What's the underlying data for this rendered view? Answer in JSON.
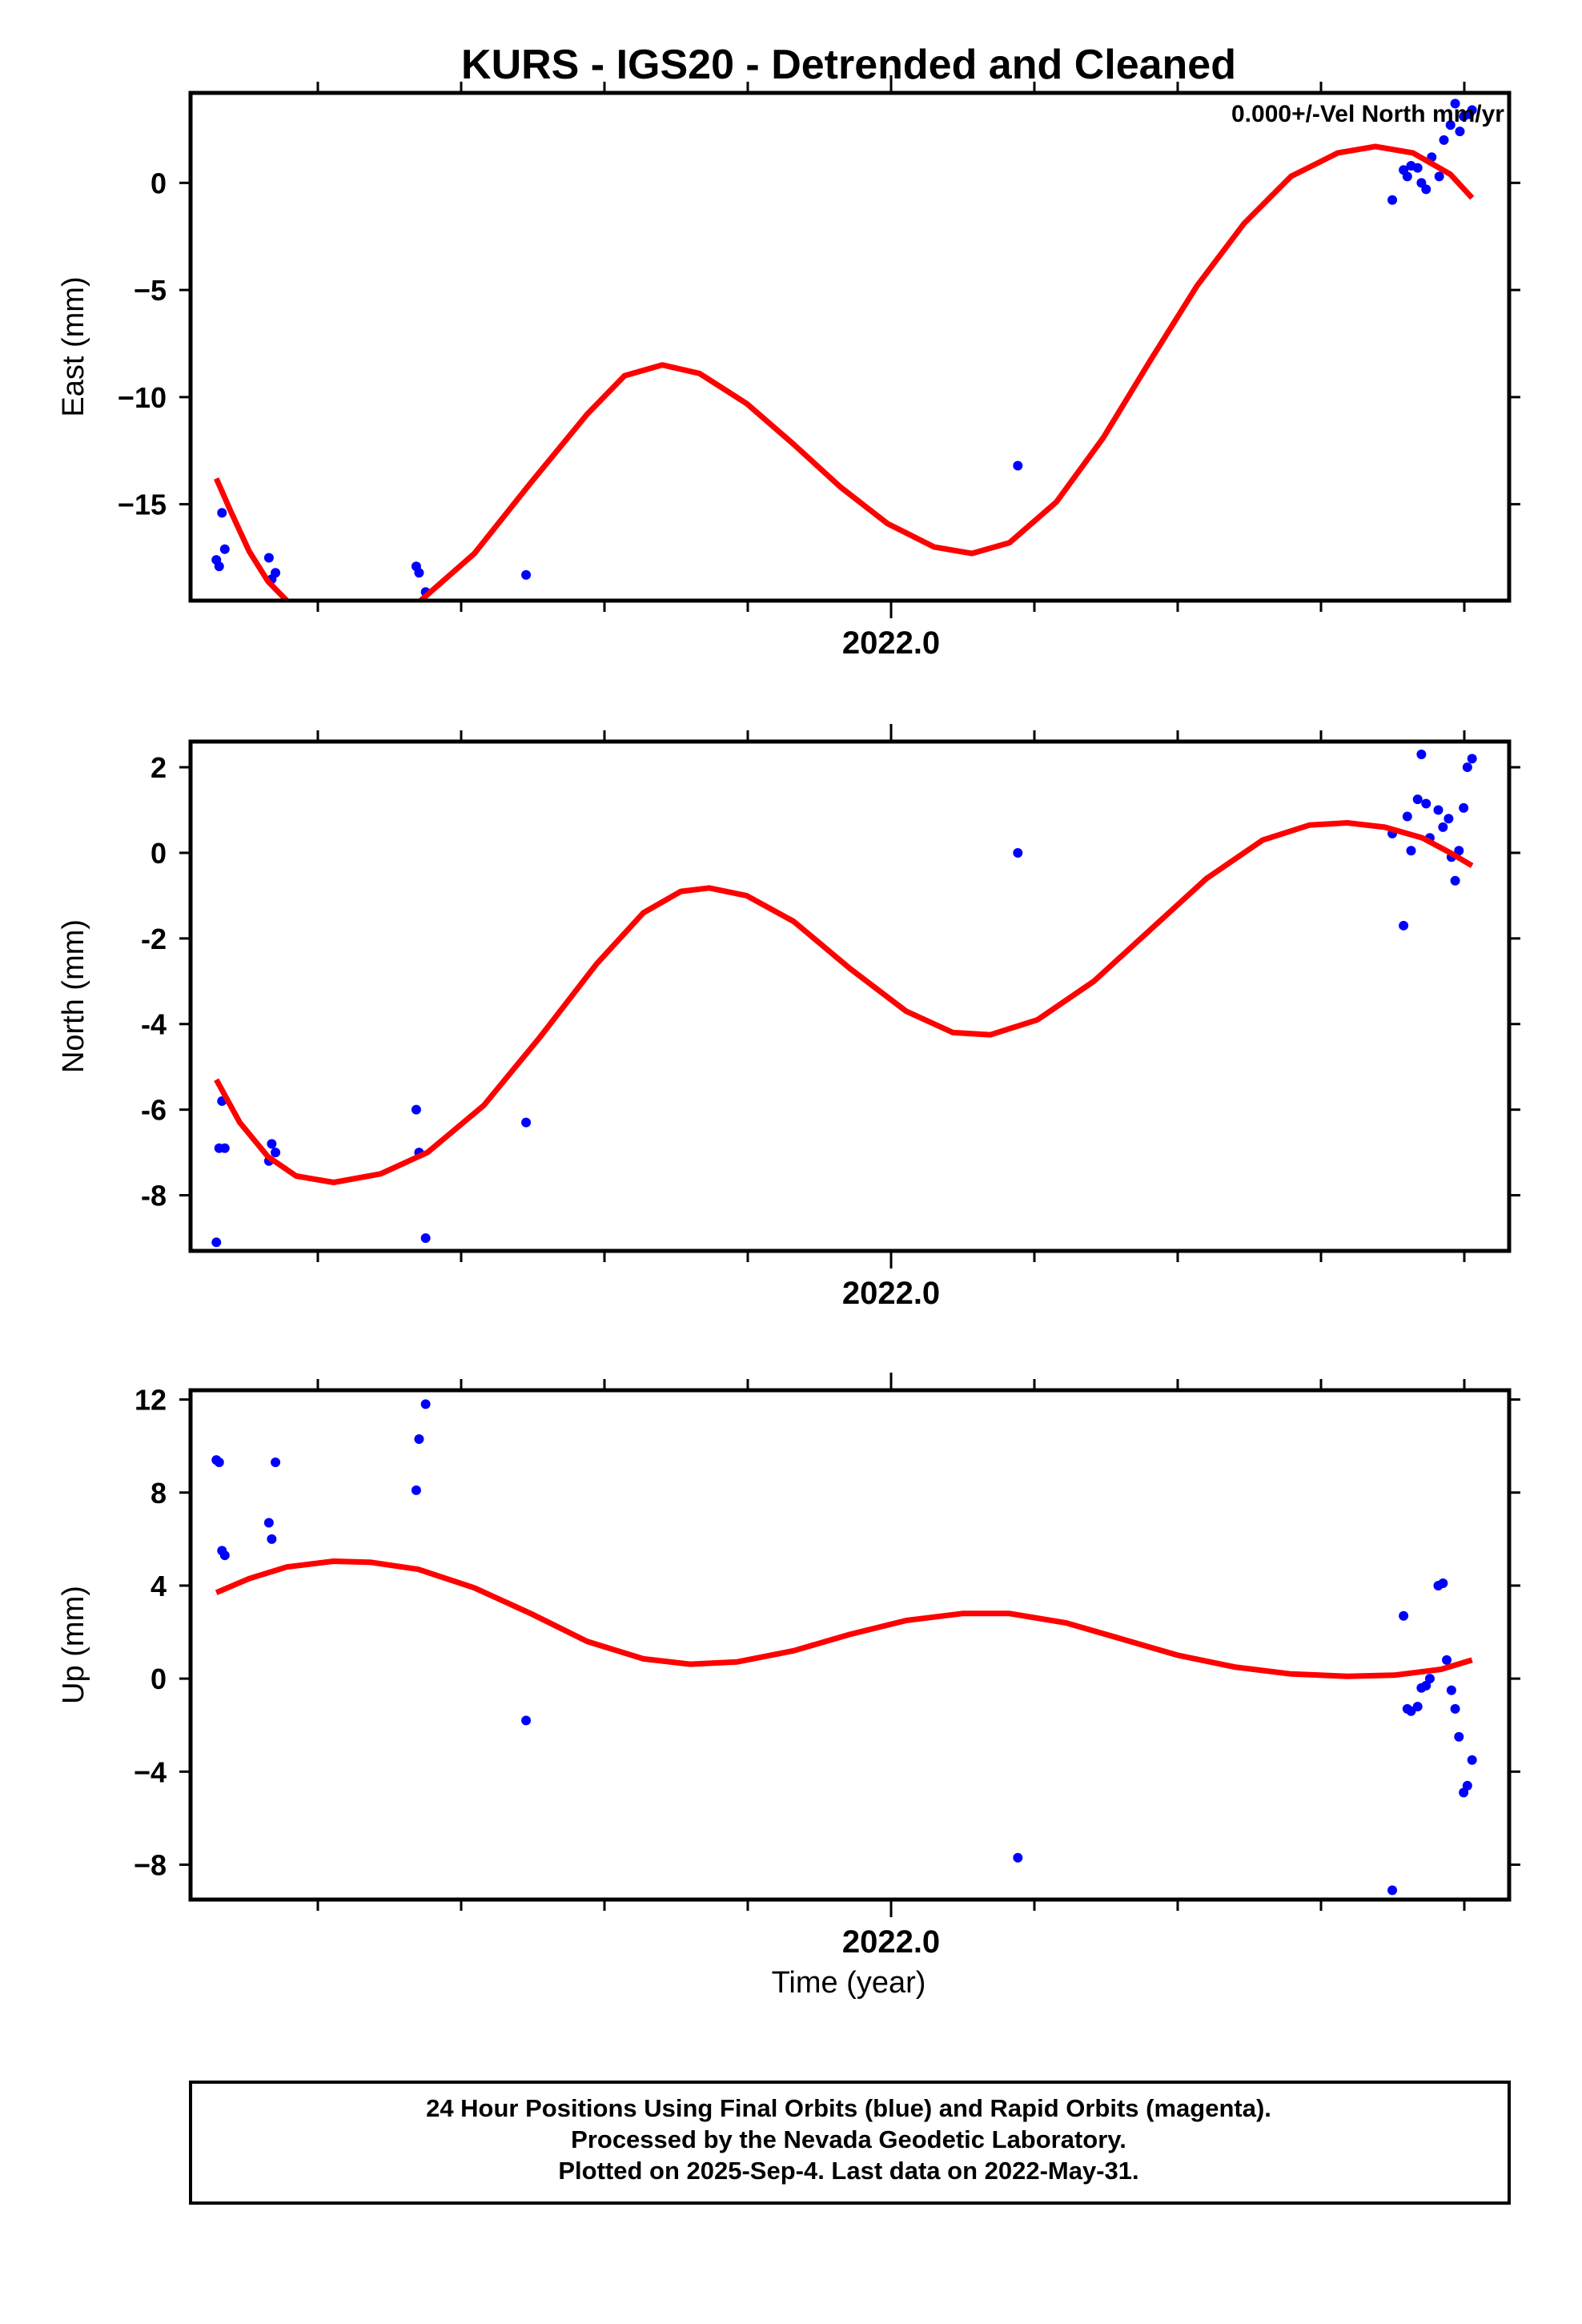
{
  "title": "KURS - IGS20 - Detrended and Cleaned",
  "xlabel": "Time (year)",
  "footer": {
    "line1": "24 Hour Positions Using Final Orbits (blue) and Rapid Orbits (magenta).",
    "line2": "Processed by the Nevada Geodetic Laboratory.",
    "line3": "Plotted on 2025-Sep-4. Last data on 2022-May-31."
  },
  "colors": {
    "points": "#0000ff",
    "fit": "#ff0000",
    "axes": "#000000"
  },
  "chart_data": [
    {
      "type": "scatter",
      "ylabel": "East (mm)",
      "annotation": "0.000+/-Vel North mm/yr",
      "xlim": [
        2021.0575,
        2022.4625
      ],
      "ylim": [
        -19.5,
        4.2
      ],
      "x_tick_label": "2022.0",
      "yticks": [
        0,
        -5,
        -10,
        -15
      ],
      "ytick_labels": [
        "0",
        "−5",
        "−10",
        "−15"
      ],
      "points": [
        {
          "x": 2021.085,
          "y": -17.6
        },
        {
          "x": 2021.088,
          "y": -17.9
        },
        {
          "x": 2021.091,
          "y": -15.4
        },
        {
          "x": 2021.094,
          "y": -17.1
        },
        {
          "x": 2021.141,
          "y": -17.5
        },
        {
          "x": 2021.144,
          "y": -18.5
        },
        {
          "x": 2021.148,
          "y": -18.2
        },
        {
          "x": 2021.298,
          "y": -17.9
        },
        {
          "x": 2021.301,
          "y": -18.2
        },
        {
          "x": 2021.308,
          "y": -19.1
        },
        {
          "x": 2021.415,
          "y": -18.3
        },
        {
          "x": 2021.939,
          "y": -13.2
        },
        {
          "x": 2022.338,
          "y": -0.8
        },
        {
          "x": 2022.35,
          "y": 0.6
        },
        {
          "x": 2022.354,
          "y": 0.3
        },
        {
          "x": 2022.358,
          "y": 0.8
        },
        {
          "x": 2022.365,
          "y": 0.7
        },
        {
          "x": 2022.369,
          "y": 0.0
        },
        {
          "x": 2022.374,
          "y": -0.3
        },
        {
          "x": 2022.38,
          "y": 1.2
        },
        {
          "x": 2022.388,
          "y": 0.3
        },
        {
          "x": 2022.393,
          "y": 2.0
        },
        {
          "x": 2022.4,
          "y": 2.7
        },
        {
          "x": 2022.405,
          "y": 3.7
        },
        {
          "x": 2022.41,
          "y": 2.4
        },
        {
          "x": 2022.414,
          "y": 3.1
        },
        {
          "x": 2022.42,
          "y": 3.2
        },
        {
          "x": 2022.423,
          "y": 3.4
        }
      ],
      "fit": [
        {
          "x": 2021.085,
          "y": -13.8
        },
        {
          "x": 2021.1,
          "y": -15.3
        },
        {
          "x": 2021.12,
          "y": -17.2
        },
        {
          "x": 2021.14,
          "y": -18.6
        },
        {
          "x": 2021.16,
          "y": -19.5
        },
        {
          "x": 2021.2,
          "y": -20.5
        },
        {
          "x": 2021.26,
          "y": -20.3
        },
        {
          "x": 2021.3,
          "y": -19.6
        },
        {
          "x": 2021.36,
          "y": -17.3
        },
        {
          "x": 2021.42,
          "y": -14.0
        },
        {
          "x": 2021.48,
          "y": -10.8
        },
        {
          "x": 2021.52,
          "y": -9.0
        },
        {
          "x": 2021.56,
          "y": -8.5
        },
        {
          "x": 2021.6,
          "y": -8.9
        },
        {
          "x": 2021.65,
          "y": -10.3
        },
        {
          "x": 2021.7,
          "y": -12.2
        },
        {
          "x": 2021.75,
          "y": -14.2
        },
        {
          "x": 2021.8,
          "y": -15.9
        },
        {
          "x": 2021.85,
          "y": -17.0
        },
        {
          "x": 2021.89,
          "y": -17.3
        },
        {
          "x": 2021.93,
          "y": -16.8
        },
        {
          "x": 2021.98,
          "y": -14.9
        },
        {
          "x": 2022.03,
          "y": -11.9
        },
        {
          "x": 2022.08,
          "y": -8.3
        },
        {
          "x": 2022.13,
          "y": -4.8
        },
        {
          "x": 2022.18,
          "y": -1.9
        },
        {
          "x": 2022.23,
          "y": 0.3
        },
        {
          "x": 2022.28,
          "y": 1.4
        },
        {
          "x": 2022.32,
          "y": 1.7
        },
        {
          "x": 2022.36,
          "y": 1.4
        },
        {
          "x": 2022.4,
          "y": 0.4
        },
        {
          "x": 2022.423,
          "y": -0.7
        }
      ]
    },
    {
      "type": "scatter",
      "ylabel": "North (mm)",
      "xlim": [
        2021.0575,
        2022.4625
      ],
      "ylim": [
        -9.3,
        2.6
      ],
      "x_tick_label": "2022.0",
      "yticks": [
        2,
        0,
        -2,
        -4,
        -6,
        -8
      ],
      "ytick_labels": [
        "2",
        "0",
        "-2",
        "-4",
        "-6",
        "-8"
      ],
      "points": [
        {
          "x": 2021.085,
          "y": -9.1
        },
        {
          "x": 2021.088,
          "y": -6.9
        },
        {
          "x": 2021.091,
          "y": -5.8
        },
        {
          "x": 2021.094,
          "y": -6.9
        },
        {
          "x": 2021.141,
          "y": -7.2
        },
        {
          "x": 2021.144,
          "y": -6.8
        },
        {
          "x": 2021.148,
          "y": -7.0
        },
        {
          "x": 2021.298,
          "y": -6.0
        },
        {
          "x": 2021.301,
          "y": -7.0
        },
        {
          "x": 2021.308,
          "y": -9.0
        },
        {
          "x": 2021.415,
          "y": -6.3
        },
        {
          "x": 2021.939,
          "y": 0.0
        },
        {
          "x": 2022.338,
          "y": 0.45
        },
        {
          "x": 2022.35,
          "y": -1.7
        },
        {
          "x": 2022.354,
          "y": 0.85
        },
        {
          "x": 2022.358,
          "y": 0.05
        },
        {
          "x": 2022.365,
          "y": 1.25
        },
        {
          "x": 2022.369,
          "y": 2.3
        },
        {
          "x": 2022.374,
          "y": 1.15
        },
        {
          "x": 2022.378,
          "y": 0.35
        },
        {
          "x": 2022.387,
          "y": 1.0
        },
        {
          "x": 2022.392,
          "y": 0.6
        },
        {
          "x": 2022.398,
          "y": 0.8
        },
        {
          "x": 2022.401,
          "y": -0.1
        },
        {
          "x": 2022.405,
          "y": -0.65
        },
        {
          "x": 2022.409,
          "y": 0.05
        },
        {
          "x": 2022.414,
          "y": 1.05
        },
        {
          "x": 2022.418,
          "y": 2.0
        },
        {
          "x": 2022.423,
          "y": 2.2
        }
      ],
      "fit": [
        {
          "x": 2021.085,
          "y": -5.3
        },
        {
          "x": 2021.11,
          "y": -6.3
        },
        {
          "x": 2021.14,
          "y": -7.1
        },
        {
          "x": 2021.17,
          "y": -7.55
        },
        {
          "x": 2021.21,
          "y": -7.7
        },
        {
          "x": 2021.26,
          "y": -7.5
        },
        {
          "x": 2021.31,
          "y": -7.0
        },
        {
          "x": 2021.37,
          "y": -5.9
        },
        {
          "x": 2021.43,
          "y": -4.3
        },
        {
          "x": 2021.49,
          "y": -2.6
        },
        {
          "x": 2021.54,
          "y": -1.4
        },
        {
          "x": 2021.58,
          "y": -0.9
        },
        {
          "x": 2021.61,
          "y": -0.82
        },
        {
          "x": 2021.65,
          "y": -1.0
        },
        {
          "x": 2021.7,
          "y": -1.6
        },
        {
          "x": 2021.76,
          "y": -2.7
        },
        {
          "x": 2021.82,
          "y": -3.7
        },
        {
          "x": 2021.87,
          "y": -4.2
        },
        {
          "x": 2021.91,
          "y": -4.25
        },
        {
          "x": 2021.96,
          "y": -3.9
        },
        {
          "x": 2022.02,
          "y": -3.0
        },
        {
          "x": 2022.08,
          "y": -1.8
        },
        {
          "x": 2022.14,
          "y": -0.6
        },
        {
          "x": 2022.2,
          "y": 0.3
        },
        {
          "x": 2022.25,
          "y": 0.65
        },
        {
          "x": 2022.29,
          "y": 0.7
        },
        {
          "x": 2022.33,
          "y": 0.6
        },
        {
          "x": 2022.37,
          "y": 0.35
        },
        {
          "x": 2022.4,
          "y": 0.0
        },
        {
          "x": 2022.423,
          "y": -0.3
        }
      ]
    },
    {
      "type": "scatter",
      "ylabel": "Up (mm)",
      "xlim": [
        2021.0575,
        2022.4625
      ],
      "ylim": [
        -9.5,
        12.4
      ],
      "x_tick_label": "2022.0",
      "yticks": [
        12,
        8,
        4,
        0,
        -4,
        -8
      ],
      "ytick_labels": [
        "12",
        "8",
        "4",
        "0",
        "−4",
        "−8"
      ],
      "points": [
        {
          "x": 2021.085,
          "y": 9.4
        },
        {
          "x": 2021.088,
          "y": 9.3
        },
        {
          "x": 2021.091,
          "y": 5.5
        },
        {
          "x": 2021.094,
          "y": 5.3
        },
        {
          "x": 2021.141,
          "y": 6.7
        },
        {
          "x": 2021.144,
          "y": 6.0
        },
        {
          "x": 2021.148,
          "y": 9.3
        },
        {
          "x": 2021.298,
          "y": 8.1
        },
        {
          "x": 2021.301,
          "y": 10.3
        },
        {
          "x": 2021.308,
          "y": 11.8
        },
        {
          "x": 2021.415,
          "y": -1.8
        },
        {
          "x": 2021.939,
          "y": -7.7
        },
        {
          "x": 2022.338,
          "y": -9.1
        },
        {
          "x": 2022.35,
          "y": 2.7
        },
        {
          "x": 2022.354,
          "y": -1.3
        },
        {
          "x": 2022.358,
          "y": -1.4
        },
        {
          "x": 2022.365,
          "y": -1.2
        },
        {
          "x": 2022.369,
          "y": -0.4
        },
        {
          "x": 2022.374,
          "y": -0.3
        },
        {
          "x": 2022.378,
          "y": 0.0
        },
        {
          "x": 2022.387,
          "y": 4.0
        },
        {
          "x": 2022.392,
          "y": 4.1
        },
        {
          "x": 2022.396,
          "y": 0.8
        },
        {
          "x": 2022.401,
          "y": -0.5
        },
        {
          "x": 2022.405,
          "y": -1.3
        },
        {
          "x": 2022.409,
          "y": -2.5
        },
        {
          "x": 2022.414,
          "y": -4.9
        },
        {
          "x": 2022.418,
          "y": -4.6
        },
        {
          "x": 2022.423,
          "y": -3.5
        }
      ],
      "fit": [
        {
          "x": 2021.085,
          "y": 3.7
        },
        {
          "x": 2021.12,
          "y": 4.3
        },
        {
          "x": 2021.16,
          "y": 4.8
        },
        {
          "x": 2021.21,
          "y": 5.05
        },
        {
          "x": 2021.25,
          "y": 5.0
        },
        {
          "x": 2021.3,
          "y": 4.7
        },
        {
          "x": 2021.36,
          "y": 3.9
        },
        {
          "x": 2021.42,
          "y": 2.8
        },
        {
          "x": 2021.48,
          "y": 1.6
        },
        {
          "x": 2021.54,
          "y": 0.85
        },
        {
          "x": 2021.59,
          "y": 0.62
        },
        {
          "x": 2021.64,
          "y": 0.72
        },
        {
          "x": 2021.7,
          "y": 1.2
        },
        {
          "x": 2021.76,
          "y": 1.9
        },
        {
          "x": 2021.82,
          "y": 2.5
        },
        {
          "x": 2021.88,
          "y": 2.8
        },
        {
          "x": 2021.93,
          "y": 2.8
        },
        {
          "x": 2021.99,
          "y": 2.4
        },
        {
          "x": 2022.05,
          "y": 1.7
        },
        {
          "x": 2022.11,
          "y": 1.0
        },
        {
          "x": 2022.17,
          "y": 0.5
        },
        {
          "x": 2022.23,
          "y": 0.2
        },
        {
          "x": 2022.29,
          "y": 0.1
        },
        {
          "x": 2022.34,
          "y": 0.15
        },
        {
          "x": 2022.39,
          "y": 0.4
        },
        {
          "x": 2022.423,
          "y": 0.8
        }
      ]
    }
  ]
}
